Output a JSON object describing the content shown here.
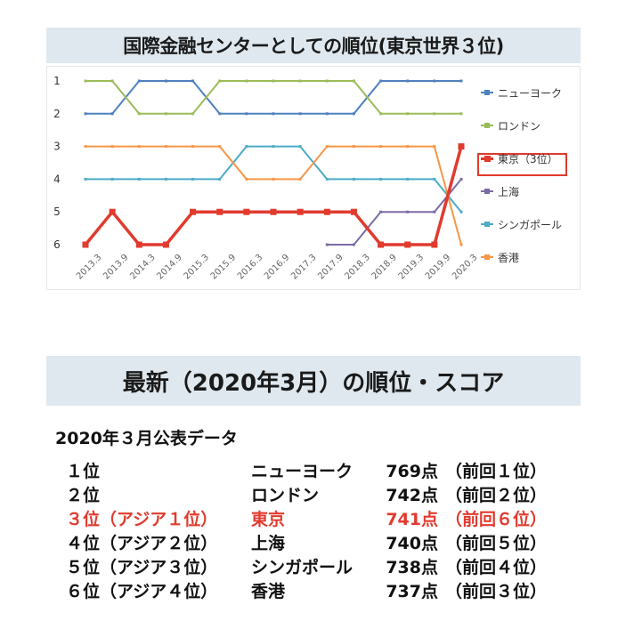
{
  "title": "国際金融センターとしての順位(東京世界３位)",
  "chart_data": {
    "type": "line",
    "x": [
      "2013.3",
      "2013.9",
      "2014.3",
      "2014.9",
      "2015.3",
      "2015.9",
      "2016.3",
      "2016.9",
      "2017.3",
      "2017.9",
      "2018.3",
      "2018.9",
      "2019.3",
      "2019.9",
      "2020.3"
    ],
    "y_ticks": [
      1,
      2,
      3,
      4,
      5,
      6
    ],
    "ylim": [
      1,
      6
    ],
    "y_inverted": true,
    "grid": false,
    "legend_position": "right",
    "series": [
      {
        "name": "ニューヨーク",
        "color": "#4f81bd",
        "values": [
          2,
          2,
          1,
          1,
          1,
          2,
          2,
          2,
          2,
          2,
          2,
          1,
          1,
          1,
          1
        ]
      },
      {
        "name": "ロンドン",
        "color": "#9bbb59",
        "values": [
          1,
          1,
          2,
          2,
          2,
          1,
          1,
          1,
          1,
          1,
          1,
          2,
          2,
          2,
          2
        ]
      },
      {
        "name": "東京（3位）",
        "color": "#e13a2e",
        "values": [
          6,
          5,
          6,
          6,
          5,
          5,
          5,
          5,
          5,
          5,
          5,
          6,
          6,
          6,
          3
        ],
        "highlight": true
      },
      {
        "name": "上海",
        "color": "#7b6ba6",
        "values": [
          null,
          null,
          null,
          null,
          null,
          null,
          null,
          null,
          null,
          6,
          6,
          5,
          5,
          5,
          4
        ]
      },
      {
        "name": "シンガポール",
        "color": "#4bacc6",
        "values": [
          4,
          4,
          4,
          4,
          4,
          4,
          3,
          3,
          3,
          4,
          4,
          4,
          4,
          4,
          5
        ]
      },
      {
        "name": "香港",
        "color": "#f79646",
        "values": [
          3,
          3,
          3,
          3,
          3,
          3,
          4,
          4,
          4,
          3,
          3,
          3,
          3,
          3,
          6
        ]
      }
    ]
  },
  "section2_title": "最新（2020年3月）の順位・スコア",
  "subhead": "2020年３月公表データ",
  "rankings": [
    {
      "rank": "１位",
      "city": "ニューヨーク",
      "score": "769点",
      "prev": "（前回１位）",
      "highlight": false
    },
    {
      "rank": "２位",
      "city": "ロンドン",
      "score": "742点",
      "prev": "（前回２位）",
      "highlight": false
    },
    {
      "rank": "３位（アジア１位）",
      "city": "東京",
      "score": "741点",
      "prev": "（前回６位）",
      "highlight": true
    },
    {
      "rank": "４位（アジア２位）",
      "city": "上海",
      "score": "740点",
      "prev": "（前回５位）",
      "highlight": false
    },
    {
      "rank": "５位（アジア３位）",
      "city": "シンガポール",
      "score": "738点",
      "prev": "（前回４位）",
      "highlight": false
    },
    {
      "rank": "６位（アジア４位）",
      "city": "香港",
      "score": "737点",
      "prev": "（前回３位）",
      "highlight": false
    }
  ]
}
